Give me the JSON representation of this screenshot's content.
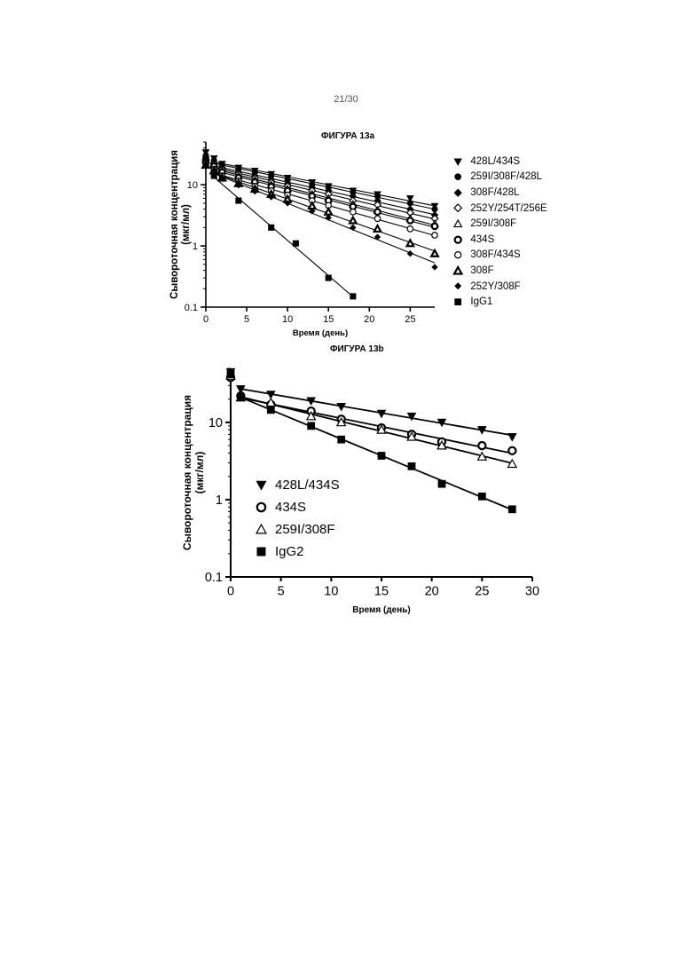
{
  "page": {
    "number": "21/30"
  },
  "chart_data": [
    {
      "type": "scatter",
      "title": "ФИГУРА 13а",
      "xlabel": "Время (день)",
      "ylabel": "Сывороточная концентрация (мкг/мл)",
      "xlim": [
        0,
        28
      ],
      "ylim": [
        0.1,
        50
      ],
      "yscale": "log",
      "xticks": [
        "0",
        "5",
        "10",
        "15",
        "20",
        "25"
      ],
      "yticks": [
        "0.1",
        "1",
        "10"
      ],
      "grid": false,
      "legend_position": "right",
      "series": [
        {
          "name": "428L/434S",
          "marker": "triangle-down-filled",
          "x": [
            0,
            1,
            2,
            4,
            6,
            8,
            10,
            13,
            15,
            18,
            21,
            25,
            28
          ],
          "y": [
            34,
            27,
            22,
            19,
            17,
            15,
            13,
            11,
            9.5,
            8,
            7,
            6,
            4.5
          ]
        },
        {
          "name": "259I/308F/428L",
          "marker": "circle-filled",
          "x": [
            0,
            1,
            2,
            4,
            6,
            8,
            10,
            13,
            15,
            18,
            21,
            25,
            28
          ],
          "y": [
            30,
            25,
            21,
            18,
            16,
            14,
            12,
            10,
            9,
            7.5,
            6.5,
            5,
            4
          ]
        },
        {
          "name": "308F/428L",
          "marker": "diamond-filled",
          "x": [
            0,
            1,
            2,
            4,
            6,
            8,
            10,
            13,
            15,
            18,
            21,
            25,
            28
          ],
          "y": [
            28,
            23,
            19,
            16,
            14,
            12,
            10.5,
            9,
            8,
            6.5,
            5.5,
            4,
            3.2
          ]
        },
        {
          "name": "252Y/254T/256E",
          "marker": "diamond-open",
          "x": [
            0,
            1,
            2,
            4,
            6,
            8,
            10,
            13,
            15,
            18,
            21,
            25,
            28
          ],
          "y": [
            26,
            22,
            18,
            15,
            13,
            11,
            9.5,
            8,
            7,
            5.5,
            4.7,
            3.5,
            2.8
          ]
        },
        {
          "name": "259I/308F",
          "marker": "triangle-up-open",
          "x": [
            0,
            1,
            2,
            4,
            6,
            8,
            10,
            13,
            15,
            18,
            21,
            25,
            28
          ],
          "y": [
            25,
            21,
            17,
            14,
            12,
            10,
            8.5,
            7,
            6,
            4.8,
            3.8,
            2.8,
            2.3
          ]
        },
        {
          "name": "434S",
          "marker": "circle-open-thick",
          "x": [
            0,
            1,
            2,
            4,
            6,
            8,
            10,
            13,
            15,
            18,
            21,
            25,
            28
          ],
          "y": [
            24,
            20,
            16,
            13,
            11,
            9.3,
            8,
            6.5,
            5.5,
            4.4,
            3.6,
            2.6,
            2.1
          ]
        },
        {
          "name": "308F/434S",
          "marker": "circle-open",
          "x": [
            0,
            1,
            2,
            4,
            6,
            8,
            10,
            13,
            15,
            18,
            21,
            25,
            28
          ],
          "y": [
            22,
            18,
            14,
            11.5,
            9.5,
            8,
            6.8,
            5.5,
            4.6,
            3.6,
            2.8,
            1.9,
            1.5
          ]
        },
        {
          "name": "308F",
          "marker": "triangle-up-open-thick",
          "x": [
            0,
            1,
            2,
            4,
            6,
            8,
            10,
            13,
            15,
            18,
            21,
            25,
            28
          ],
          "y": [
            21,
            17,
            13,
            10.5,
            8.5,
            7,
            5.8,
            4.5,
            3.6,
            2.6,
            1.9,
            1.1,
            0.75
          ]
        },
        {
          "name": "252Y/308F",
          "marker": "diamond-filled-small",
          "x": [
            0,
            1,
            2,
            4,
            6,
            8,
            10,
            13,
            15,
            18,
            21,
            25,
            28
          ],
          "y": [
            20,
            16,
            12.5,
            9.8,
            7.8,
            6.3,
            5,
            3.7,
            2.9,
            2,
            1.4,
            0.75,
            0.45
          ]
        },
        {
          "name": "IgG1",
          "marker": "square-filled",
          "x": [
            0,
            1,
            4,
            8,
            11,
            15,
            18
          ],
          "y": [
            28,
            14,
            5.5,
            2,
            1.1,
            0.3,
            0.15
          ]
        }
      ]
    },
    {
      "type": "scatter",
      "title": "ФИГУРА 13b",
      "xlabel": "Время (день)",
      "ylabel": "Сывороточная концентрация (мкг/мл)",
      "xlim": [
        0,
        30
      ],
      "ylim": [
        0.1,
        50
      ],
      "yscale": "log",
      "xticks": [
        "0",
        "5",
        "10",
        "15",
        "20",
        "25",
        "30"
      ],
      "yticks": [
        "0.1",
        "1",
        "10"
      ],
      "grid": false,
      "legend_position": "bottom-left",
      "series": [
        {
          "name": "428L/434S",
          "marker": "triangle-down-filled",
          "x": [
            0,
            1,
            4,
            8,
            11,
            15,
            18,
            21,
            25,
            28
          ],
          "y": [
            45,
            27,
            23,
            19,
            16,
            13,
            12,
            10,
            8,
            6.5
          ]
        },
        {
          "name": "434S",
          "marker": "circle-open-thick",
          "x": [
            0,
            1,
            4,
            8,
            11,
            15,
            18,
            21,
            25,
            28
          ],
          "y": [
            38,
            22,
            17,
            14,
            11,
            8.5,
            7,
            5.6,
            5,
            4.3
          ]
        },
        {
          "name": "259I/308F",
          "marker": "triangle-up-open",
          "x": [
            0,
            1,
            4,
            8,
            11,
            15,
            18,
            21,
            25,
            28
          ],
          "y": [
            40,
            21,
            18,
            12,
            10,
            8,
            6.5,
            5,
            3.6,
            2.9
          ]
        },
        {
          "name": "IgG2",
          "marker": "square-filled",
          "x": [
            0,
            1,
            4,
            8,
            11,
            15,
            18,
            21,
            25,
            28
          ],
          "y": [
            42,
            21,
            14.5,
            9,
            6,
            3.7,
            2.7,
            1.6,
            1.1,
            0.75
          ]
        }
      ]
    }
  ]
}
